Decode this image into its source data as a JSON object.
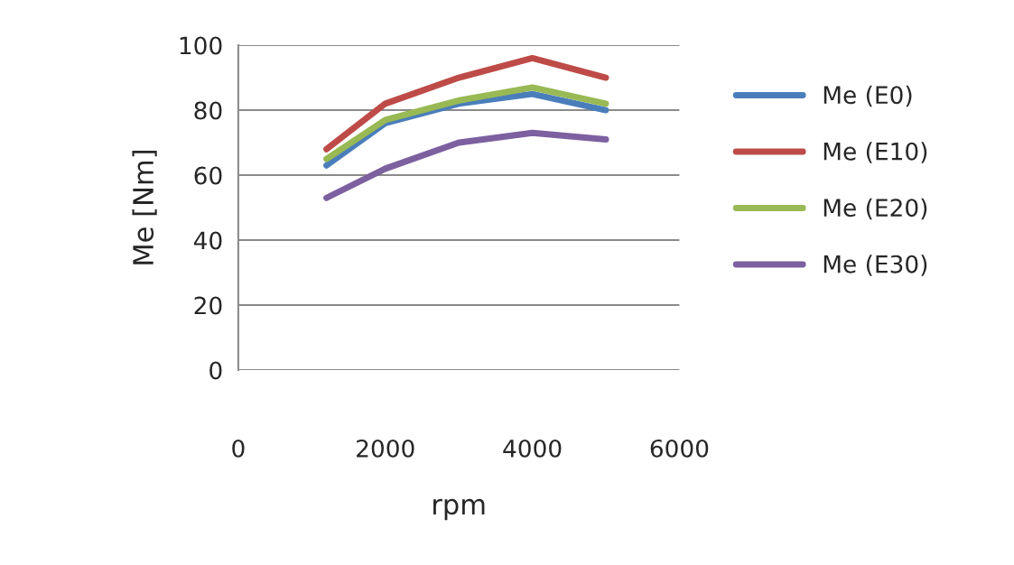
{
  "chart_data": {
    "type": "line",
    "xlabel": "rpm",
    "ylabel": "Me [Nm]",
    "x": [
      1200,
      2000,
      3000,
      4000,
      5000
    ],
    "series": [
      {
        "name": "Me (E0)",
        "color": "#4a7ebb",
        "values": [
          63,
          76,
          82,
          85,
          80
        ]
      },
      {
        "name": "Me (E10)",
        "color": "#be4b48",
        "values": [
          68,
          82,
          90,
          96,
          90
        ]
      },
      {
        "name": "Me (E20)",
        "color": "#98b954",
        "values": [
          65,
          77,
          83,
          87,
          82
        ]
      },
      {
        "name": "Me (E30)",
        "color": "#7d60a0",
        "values": [
          53,
          62,
          70,
          73,
          71
        ]
      }
    ],
    "xlim": [
      0,
      6000
    ],
    "xticks": [
      0,
      2000,
      4000,
      6000
    ],
    "ylim": [
      0,
      100
    ],
    "yticks": [
      0,
      20,
      40,
      60,
      80,
      100
    ],
    "grid": "y",
    "legend": "right",
    "marker": "none",
    "line_style": "solid"
  }
}
